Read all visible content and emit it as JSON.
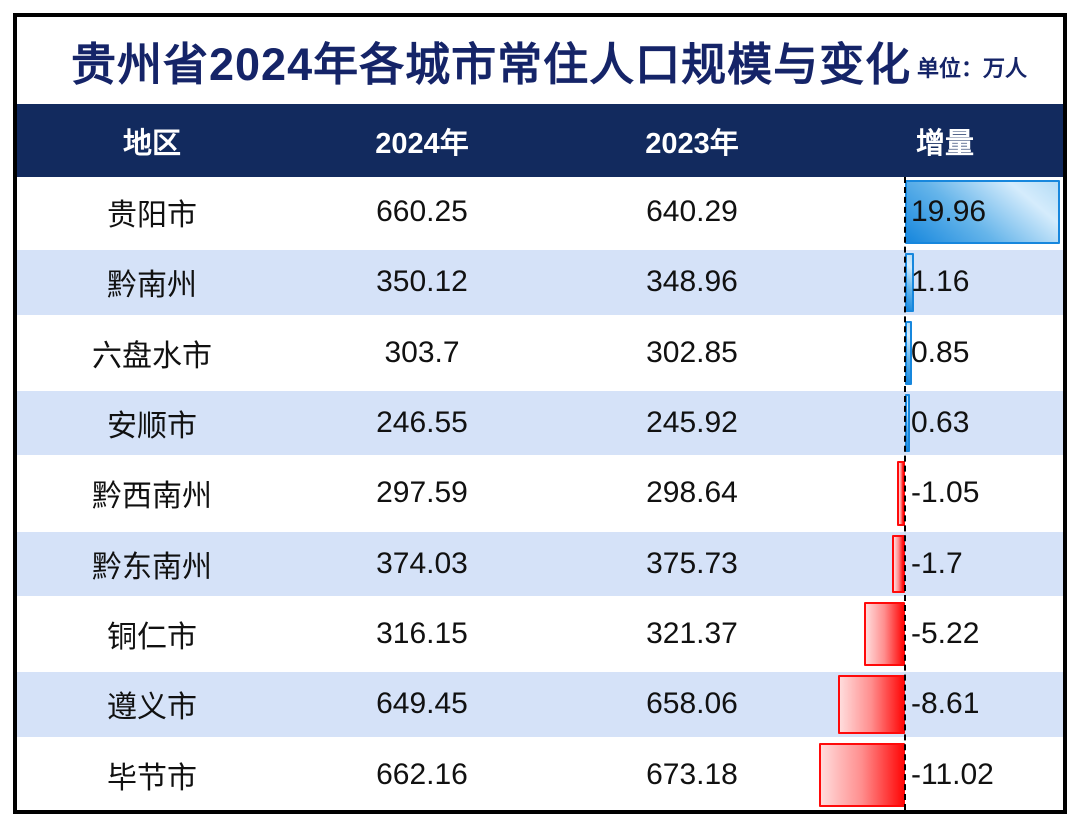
{
  "title": "贵州省2024年各城市常住人口规模与变化",
  "unit_label": "单位：万人",
  "table": {
    "headers": [
      "地区",
      "2024年",
      "2023年",
      "增量"
    ],
    "rows": [
      {
        "region": "贵阳市",
        "y2024": "660.25",
        "y2023": "640.29",
        "delta": "19.96"
      },
      {
        "region": "黔南州",
        "y2024": "350.12",
        "y2023": "348.96",
        "delta": "1.16"
      },
      {
        "region": "六盘水市",
        "y2024": "303.7",
        "y2023": "302.85",
        "delta": "0.85"
      },
      {
        "region": "安顺市",
        "y2024": "246.55",
        "y2023": "245.92",
        "delta": "0.63"
      },
      {
        "region": "黔西南州",
        "y2024": "297.59",
        "y2023": "298.64",
        "delta": "-1.05"
      },
      {
        "region": "黔东南州",
        "y2024": "374.03",
        "y2023": "375.73",
        "delta": "-1.7"
      },
      {
        "region": "铜仁市",
        "y2024": "316.15",
        "y2023": "321.37",
        "delta": "-5.22"
      },
      {
        "region": "遵义市",
        "y2024": "649.45",
        "y2023": "658.06",
        "delta": "-8.61"
      },
      {
        "region": "毕节市",
        "y2024": "662.16",
        "y2023": "673.18",
        "delta": "-11.02"
      }
    ]
  },
  "chart_data": {
    "type": "bar",
    "title": "贵州省2024年各城市常住人口规模与变化",
    "unit": "万人",
    "bar_orientation": "horizontal",
    "categories": [
      "贵阳市",
      "黔南州",
      "六盘水市",
      "安顺市",
      "黔西南州",
      "黔东南州",
      "铜仁市",
      "遵义市",
      "毕节市"
    ],
    "series": [
      {
        "name": "2024年",
        "values": [
          660.25,
          350.12,
          303.7,
          246.55,
          297.59,
          374.03,
          316.15,
          649.45,
          662.16
        ]
      },
      {
        "name": "2023年",
        "values": [
          640.29,
          348.96,
          302.85,
          245.92,
          298.64,
          375.73,
          321.37,
          658.06,
          673.18
        ]
      },
      {
        "name": "增量",
        "values": [
          19.96,
          1.16,
          0.85,
          0.63,
          -1.05,
          -1.7,
          -5.22,
          -8.61,
          -11.02
        ]
      }
    ],
    "axis": {
      "zero_line": "dashed-black",
      "bars_plotted": "增量",
      "xlim": [
        -13,
        21
      ]
    },
    "legend_position": "none",
    "grid": false
  },
  "colors": {
    "title": "#152468",
    "header_bg": "#122a5e",
    "alt_row": "#d5e2f8",
    "positive_bar": "#1787dd",
    "negative_bar": "#ff0a0a"
  }
}
